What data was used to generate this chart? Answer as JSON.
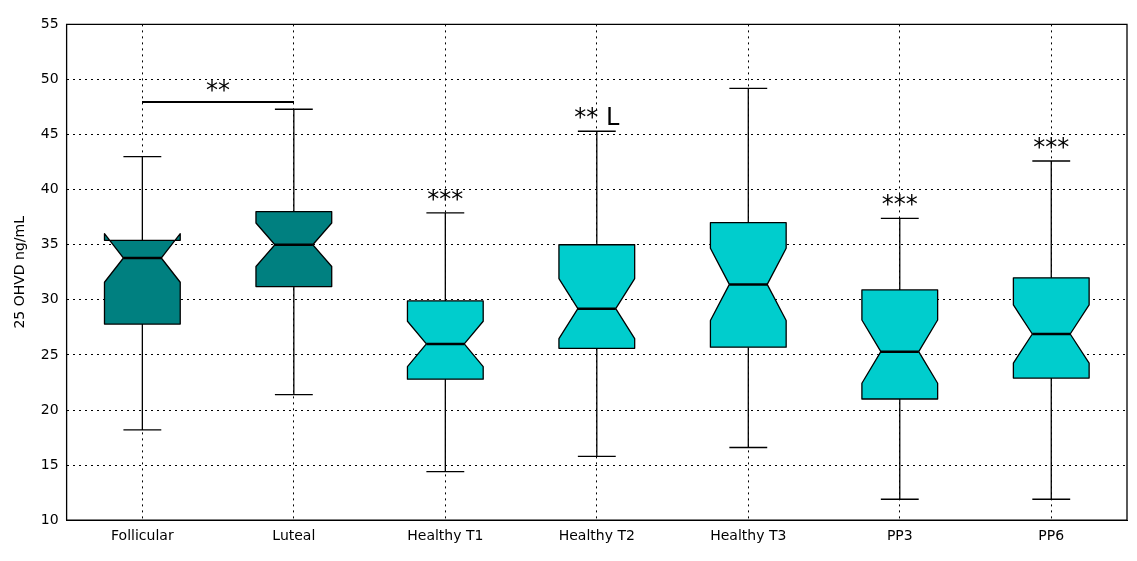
{
  "chart_data": {
    "type": "box",
    "ylabel": "25 OHVD ng/mL",
    "categories": [
      "Follicular",
      "Luteal",
      "Healthy T1",
      "Healthy T2",
      "Healthy T3",
      "PP3",
      "PP6"
    ],
    "boxes": [
      {
        "low": 18.2,
        "q1": 27.8,
        "median": 33.8,
        "q3": 35.4,
        "high": 43.0
      },
      {
        "low": 21.4,
        "q1": 31.2,
        "median": 35.0,
        "q3": 38.0,
        "high": 47.3
      },
      {
        "low": 14.4,
        "q1": 22.8,
        "median": 26.0,
        "q3": 29.9,
        "high": 37.9
      },
      {
        "low": 15.8,
        "q1": 25.6,
        "median": 29.2,
        "q3": 35.0,
        "high": 45.3
      },
      {
        "low": 16.6,
        "q1": 25.7,
        "median": 31.4,
        "q3": 37.0,
        "high": 49.2
      },
      {
        "low": 11.9,
        "q1": 21.0,
        "median": 25.3,
        "q3": 30.9,
        "high": 37.4
      },
      {
        "low": 11.9,
        "q1": 22.9,
        "median": 26.9,
        "q3": 32.0,
        "high": 42.6
      }
    ],
    "colors": [
      "#008080",
      "#008080",
      "#00cdcd",
      "#00cdcd",
      "#00cdcd",
      "#00cdcd",
      "#00cdcd"
    ],
    "ylim": [
      10,
      55
    ],
    "yticks": [
      10,
      15,
      20,
      25,
      30,
      35,
      40,
      45,
      50,
      55
    ],
    "grid": true,
    "annotations": [
      "**",
      {
        "text": "***",
        "x": "Healthy T1",
        "y": 37.9
      },
      {
        "text": "** L",
        "x": "Healthy T2",
        "y": 45.3
      },
      {
        "text": "***",
        "x": "PP3",
        "y": 37.4
      },
      {
        "text": "***",
        "x": "PP6",
        "y": 42.6
      }
    ]
  }
}
